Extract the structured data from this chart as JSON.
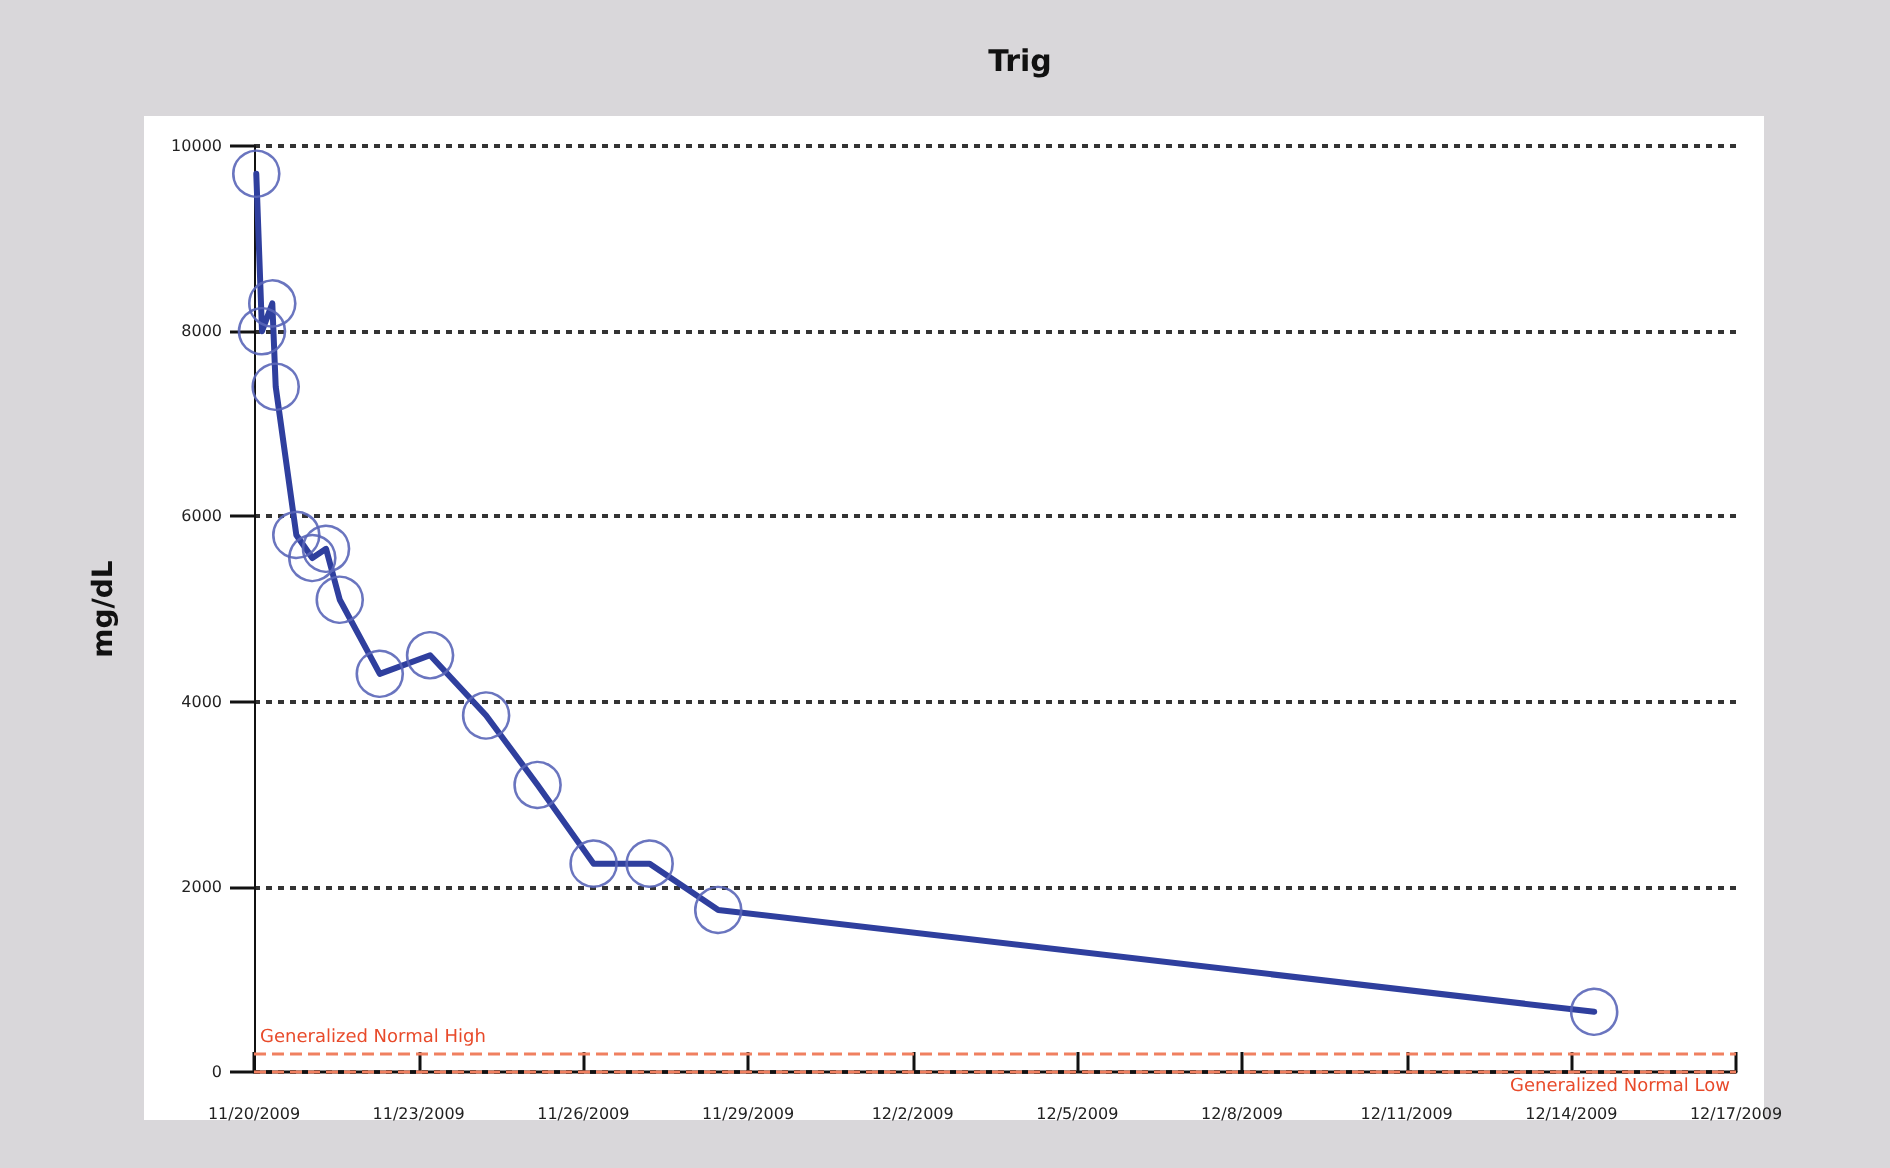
{
  "chart_data": {
    "type": "line",
    "title": "Trig",
    "ylabel": "mg/dL",
    "x": [
      "2009-11-20T01:00",
      "2009-11-20T03:30",
      "2009-11-20T08:00",
      "2009-11-20T09:30",
      "2009-11-20T18:30",
      "2009-11-21T01:30",
      "2009-11-21T07:30",
      "2009-11-21T13:30",
      "2009-11-22T07:00",
      "2009-11-23T05:00",
      "2009-11-24T05:30",
      "2009-11-25T04:00",
      "2009-11-26T04:30",
      "2009-11-27T05:00",
      "2009-11-28T11:00",
      "2009-12-14T10:00"
    ],
    "series": [
      {
        "color": "#2f3f9e",
        "values": [
          9700,
          8000,
          8300,
          7400,
          5800,
          5550,
          5650,
          5100,
          4300,
          4500,
          3850,
          3100,
          2250,
          2250,
          1750,
          650
        ]
      }
    ],
    "xlim": [
      "2009-11-20",
      "2009-12-17"
    ],
    "xticks": [
      {
        "value": "2009-11-20",
        "label": "11/20/2009"
      },
      {
        "value": "2009-11-23",
        "label": "11/23/2009"
      },
      {
        "value": "2009-11-26",
        "label": "11/26/2009"
      },
      {
        "value": "2009-11-29",
        "label": "11/29/2009"
      },
      {
        "value": "2009-12-02",
        "label": "12/2/2009"
      },
      {
        "value": "2009-12-05",
        "label": "12/5/2009"
      },
      {
        "value": "2009-12-08",
        "label": "12/8/2009"
      },
      {
        "value": "2009-12-11",
        "label": "12/11/2009"
      },
      {
        "value": "2009-12-14",
        "label": "12/14/2009"
      },
      {
        "value": "2009-12-17",
        "label": "12/17/2009"
      }
    ],
    "ylim": [
      0,
      10000
    ],
    "yticks": [
      0,
      2000,
      4000,
      6000,
      8000,
      10000
    ],
    "ref_lines": [
      {
        "axis": "y",
        "value": 200,
        "label": "Generalized Normal High",
        "color": "#f08060",
        "line_style": "dashed"
      },
      {
        "axis": "y",
        "value": 0,
        "label": "Generalized Normal Low",
        "color": "#f08060",
        "line_style": "dashed"
      }
    ],
    "grid": "y",
    "marker": "circle",
    "line_style": "solid"
  }
}
